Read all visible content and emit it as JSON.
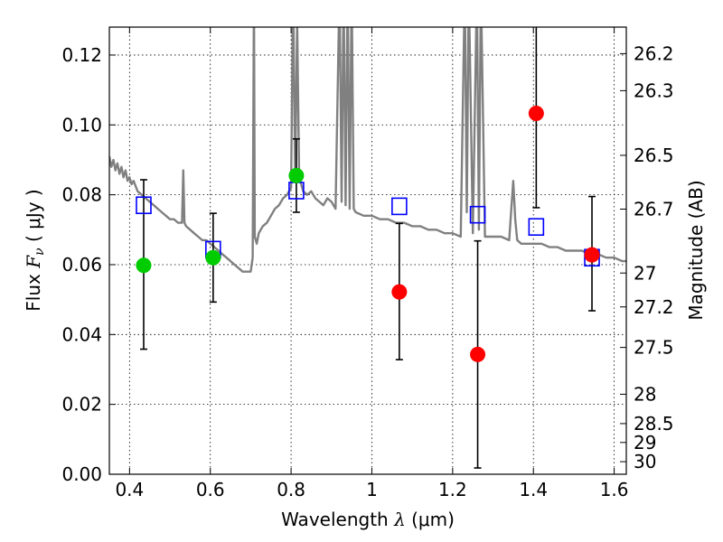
{
  "chart_data": {
    "type": "scatter",
    "xlabel": {
      "prefix": "Wavelength  ",
      "symbol": "λ",
      "unit": " (μm)"
    },
    "ylabel": {
      "prefix": "Flux  ",
      "symbol": "F",
      "subscript": "ν",
      "unit": "  ( μJy )"
    },
    "ylabel_right": "Magnitude (AB)",
    "xlim": [
      0.35,
      1.63
    ],
    "ylim": [
      0.0,
      0.128
    ],
    "grid": true,
    "x_ticks": [
      0.4,
      0.6,
      0.8,
      1.0,
      1.2,
      1.4,
      1.6
    ],
    "x_tick_labels": [
      "0.4",
      "0.6",
      "0.8",
      "1",
      "1.2",
      "1.4",
      "1.6"
    ],
    "y_ticks": [
      0.0,
      0.02,
      0.04,
      0.06,
      0.08,
      0.1,
      0.12
    ],
    "y_tick_labels": [
      "0.00",
      "0.02",
      "0.04",
      "0.06",
      "0.08",
      "0.10",
      "0.12"
    ],
    "right_ticks": [
      {
        "label": "26.2",
        "flux": 0.1204
      },
      {
        "label": "26.3",
        "flux": 0.1098
      },
      {
        "label": "26.5",
        "flux": 0.0913
      },
      {
        "label": "26.7",
        "flux": 0.0759
      },
      {
        "label": "27",
        "flux": 0.0576
      },
      {
        "label": "27.2",
        "flux": 0.0479
      },
      {
        "label": "27.5",
        "flux": 0.0363
      },
      {
        "label": "28",
        "flux": 0.0229
      },
      {
        "label": "28.5",
        "flux": 0.0145
      },
      {
        "label": "29",
        "flux": 0.0091
      },
      {
        "label": "30",
        "flux": 0.0036
      }
    ],
    "series": [
      {
        "kind": "model-spectrum",
        "color": "#808080",
        "x": [
          0.35,
          0.355,
          0.36,
          0.365,
          0.37,
          0.375,
          0.38,
          0.385,
          0.39,
          0.395,
          0.4,
          0.405,
          0.41,
          0.42,
          0.43,
          0.44,
          0.45,
          0.46,
          0.47,
          0.48,
          0.49,
          0.5,
          0.51,
          0.52,
          0.53,
          0.533,
          0.536,
          0.54,
          0.55,
          0.56,
          0.57,
          0.58,
          0.59,
          0.6,
          0.61,
          0.62,
          0.63,
          0.64,
          0.65,
          0.66,
          0.67,
          0.68,
          0.69,
          0.7,
          0.705,
          0.708,
          0.71,
          0.715,
          0.72,
          0.73,
          0.74,
          0.75,
          0.76,
          0.77,
          0.78,
          0.79,
          0.8,
          0.805,
          0.81,
          0.815,
          0.82,
          0.825,
          0.83,
          0.84,
          0.85,
          0.86,
          0.87,
          0.88,
          0.89,
          0.9,
          0.91,
          0.92,
          0.925,
          0.93,
          0.935,
          0.94,
          0.945,
          0.95,
          0.955,
          0.96,
          0.98,
          1.0,
          1.02,
          1.04,
          1.06,
          1.08,
          1.1,
          1.12,
          1.14,
          1.16,
          1.18,
          1.2,
          1.22,
          1.23,
          1.235,
          1.24,
          1.25,
          1.26,
          1.265,
          1.27,
          1.28,
          1.3,
          1.32,
          1.34,
          1.35,
          1.355,
          1.36,
          1.37,
          1.38,
          1.4,
          1.42,
          1.44,
          1.46,
          1.48,
          1.5,
          1.52,
          1.54,
          1.56,
          1.58,
          1.6,
          1.62,
          1.63
        ],
        "y": [
          0.091,
          0.088,
          0.09,
          0.087,
          0.089,
          0.086,
          0.088,
          0.085,
          0.087,
          0.084,
          0.085,
          0.083,
          0.084,
          0.081,
          0.08,
          0.079,
          0.078,
          0.077,
          0.076,
          0.075,
          0.074,
          0.073,
          0.073,
          0.072,
          0.072,
          0.087,
          0.072,
          0.071,
          0.07,
          0.069,
          0.068,
          0.067,
          0.067,
          0.066,
          0.065,
          0.064,
          0.063,
          0.062,
          0.061,
          0.06,
          0.059,
          0.058,
          0.058,
          0.058,
          0.062,
          0.14,
          0.068,
          0.066,
          0.069,
          0.071,
          0.072,
          0.074,
          0.076,
          0.077,
          0.079,
          0.08,
          0.082,
          0.14,
          0.084,
          0.13,
          0.085,
          0.083,
          0.081,
          0.08,
          0.081,
          0.079,
          0.078,
          0.077,
          0.079,
          0.078,
          0.076,
          0.14,
          0.078,
          0.14,
          0.077,
          0.14,
          0.076,
          0.14,
          0.076,
          0.075,
          0.074,
          0.074,
          0.073,
          0.073,
          0.072,
          0.072,
          0.071,
          0.071,
          0.07,
          0.07,
          0.069,
          0.069,
          0.068,
          0.14,
          0.075,
          0.14,
          0.069,
          0.14,
          0.07,
          0.14,
          0.068,
          0.068,
          0.068,
          0.067,
          0.084,
          0.073,
          0.067,
          0.066,
          0.066,
          0.066,
          0.066,
          0.065,
          0.065,
          0.064,
          0.064,
          0.064,
          0.063,
          0.063,
          0.062,
          0.062,
          0.061,
          0.061
        ]
      },
      {
        "kind": "model-points",
        "marker": "square-open",
        "color": "#0000ff",
        "x": [
          0.435,
          0.607,
          0.813,
          1.068,
          1.262,
          1.407,
          1.545
        ],
        "y": [
          0.077,
          0.0643,
          0.0812,
          0.0767,
          0.0743,
          0.0708,
          0.062
        ]
      },
      {
        "kind": "detections",
        "marker": "circle",
        "color": "#00cc00",
        "x": [
          0.435,
          0.607,
          0.813
        ],
        "y": [
          0.0598,
          0.062,
          0.0855
        ],
        "yerr_low": [
          0.0358,
          0.0493,
          0.075
        ],
        "yerr_high": [
          0.0843,
          0.0747,
          0.096
        ]
      },
      {
        "kind": "non-detections",
        "marker": "circle",
        "color": "#ff0000",
        "x": [
          1.068,
          1.262,
          1.407,
          1.545
        ],
        "y": [
          0.0522,
          0.0343,
          0.1033,
          0.0628
        ],
        "yerr_low": [
          0.0328,
          0.0018,
          0.0763,
          0.0468
        ],
        "yerr_high": [
          0.0718,
          0.0668,
          0.1303,
          0.0795
        ]
      }
    ]
  }
}
